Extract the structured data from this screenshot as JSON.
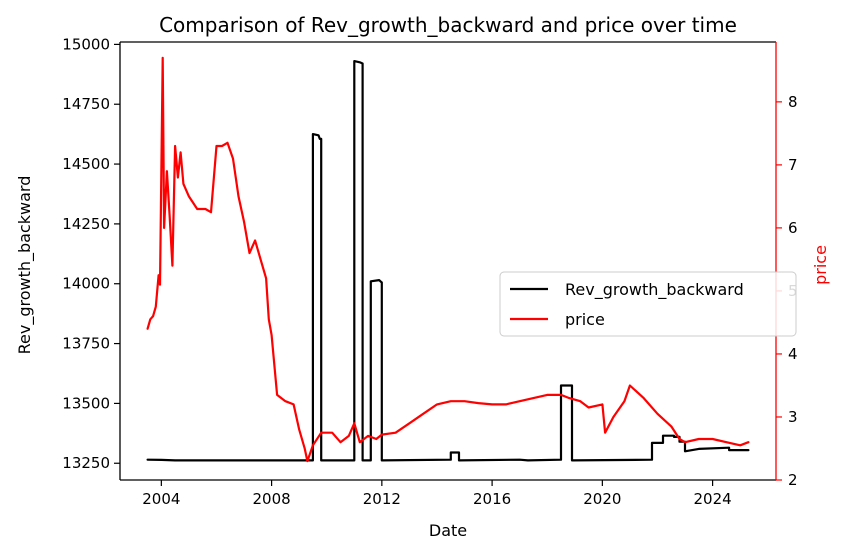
{
  "chart_data": {
    "type": "line",
    "title": "Comparison of Rev_growth_backward and price over time",
    "xlabel": "Date",
    "ylabel": "Rev_growth_backward",
    "ylabel_right": "price",
    "xlim": [
      2002.5,
      2026.3
    ],
    "ylim": [
      13180,
      15010
    ],
    "ylim_right": [
      2.0,
      8.95
    ],
    "x_ticks": [
      2004,
      2008,
      2012,
      2016,
      2020,
      2024
    ],
    "x_tick_labels": [
      "2004",
      "2008",
      "2012",
      "2016",
      "2020",
      "2024"
    ],
    "y_ticks": [
      13250,
      13500,
      13750,
      14000,
      14250,
      14500,
      14750,
      15000
    ],
    "y_tick_labels": [
      "13250",
      "13500",
      "13750",
      "14000",
      "14250",
      "14500",
      "14750",
      "15000"
    ],
    "y_right_ticks": [
      2,
      3,
      4,
      5,
      6,
      7,
      8
    ],
    "y_right_tick_labels": [
      "2",
      "3",
      "4",
      "5",
      "6",
      "7",
      "8"
    ],
    "grid": false,
    "legend_position": "center-right",
    "colors": {
      "Rev_growth_backward": "#000000",
      "price": "#ff0000",
      "right_axis": "#ff0000"
    },
    "series": [
      {
        "name": "Rev_growth_backward",
        "axis": "left",
        "step": true,
        "points": [
          [
            2003.5,
            13265
          ],
          [
            2004.0,
            13264
          ],
          [
            2004.5,
            13262
          ],
          [
            2009.5,
            13262
          ],
          [
            2009.5,
            14625
          ],
          [
            2009.7,
            14620
          ],
          [
            2009.75,
            14605
          ],
          [
            2009.8,
            14605
          ],
          [
            2009.8,
            13262
          ],
          [
            2011.0,
            13262
          ],
          [
            2011.0,
            14930
          ],
          [
            2011.2,
            14925
          ],
          [
            2011.3,
            14920
          ],
          [
            2011.3,
            13262
          ],
          [
            2011.6,
            13262
          ],
          [
            2011.6,
            14010
          ],
          [
            2011.9,
            14015
          ],
          [
            2012.0,
            14005
          ],
          [
            2012.0,
            13262
          ],
          [
            2014.5,
            13265
          ],
          [
            2014.5,
            13295
          ],
          [
            2014.8,
            13295
          ],
          [
            2014.8,
            13262
          ],
          [
            2017.0,
            13265
          ],
          [
            2017.3,
            13262
          ],
          [
            2018.5,
            13265
          ],
          [
            2018.5,
            13575
          ],
          [
            2018.9,
            13575
          ],
          [
            2018.9,
            13262
          ],
          [
            2021.8,
            13265
          ],
          [
            2021.8,
            13335
          ],
          [
            2022.2,
            13335
          ],
          [
            2022.2,
            13365
          ],
          [
            2022.6,
            13365
          ],
          [
            2022.6,
            13360
          ],
          [
            2022.8,
            13360
          ],
          [
            2022.8,
            13340
          ],
          [
            2023.0,
            13340
          ],
          [
            2023.0,
            13300
          ],
          [
            2023.5,
            13310
          ],
          [
            2024.6,
            13315
          ],
          [
            2024.6,
            13305
          ],
          [
            2025.3,
            13305
          ]
        ]
      },
      {
        "name": "price",
        "axis": "right",
        "step": false,
        "points": [
          [
            2003.5,
            4.4
          ],
          [
            2003.6,
            4.55
          ],
          [
            2003.7,
            4.6
          ],
          [
            2003.8,
            4.75
          ],
          [
            2003.9,
            5.25
          ],
          [
            2003.95,
            5.1
          ],
          [
            2004.05,
            8.7
          ],
          [
            2004.1,
            6.0
          ],
          [
            2004.2,
            6.9
          ],
          [
            2004.3,
            6.2
          ],
          [
            2004.4,
            5.4
          ],
          [
            2004.5,
            7.3
          ],
          [
            2004.6,
            6.8
          ],
          [
            2004.7,
            7.2
          ],
          [
            2004.8,
            6.7
          ],
          [
            2005.0,
            6.5
          ],
          [
            2005.3,
            6.3
          ],
          [
            2005.6,
            6.3
          ],
          [
            2005.8,
            6.25
          ],
          [
            2006.0,
            7.3
          ],
          [
            2006.2,
            7.3
          ],
          [
            2006.4,
            7.35
          ],
          [
            2006.6,
            7.1
          ],
          [
            2006.8,
            6.5
          ],
          [
            2007.0,
            6.1
          ],
          [
            2007.2,
            5.6
          ],
          [
            2007.4,
            5.8
          ],
          [
            2007.6,
            5.5
          ],
          [
            2007.8,
            5.2
          ],
          [
            2007.9,
            4.55
          ],
          [
            2008.0,
            4.3
          ],
          [
            2008.2,
            3.35
          ],
          [
            2008.5,
            3.25
          ],
          [
            2008.8,
            3.2
          ],
          [
            2009.0,
            2.8
          ],
          [
            2009.2,
            2.5
          ],
          [
            2009.3,
            2.3
          ],
          [
            2009.5,
            2.55
          ],
          [
            2009.8,
            2.75
          ],
          [
            2010.2,
            2.75
          ],
          [
            2010.5,
            2.6
          ],
          [
            2010.8,
            2.7
          ],
          [
            2011.0,
            2.9
          ],
          [
            2011.2,
            2.6
          ],
          [
            2011.5,
            2.7
          ],
          [
            2011.8,
            2.65
          ],
          [
            2012.0,
            2.72
          ],
          [
            2012.5,
            2.75
          ],
          [
            2013.0,
            2.9
          ],
          [
            2013.5,
            3.05
          ],
          [
            2014.0,
            3.2
          ],
          [
            2014.5,
            3.25
          ],
          [
            2015.0,
            3.25
          ],
          [
            2015.5,
            3.22
          ],
          [
            2016.0,
            3.2
          ],
          [
            2016.5,
            3.2
          ],
          [
            2017.0,
            3.25
          ],
          [
            2017.5,
            3.3
          ],
          [
            2018.0,
            3.35
          ],
          [
            2018.5,
            3.35
          ],
          [
            2018.8,
            3.3
          ],
          [
            2019.2,
            3.25
          ],
          [
            2019.5,
            3.15
          ],
          [
            2020.0,
            3.2
          ],
          [
            2020.1,
            2.75
          ],
          [
            2020.4,
            3.0
          ],
          [
            2020.8,
            3.25
          ],
          [
            2021.0,
            3.5
          ],
          [
            2021.5,
            3.3
          ],
          [
            2022.0,
            3.05
          ],
          [
            2022.5,
            2.85
          ],
          [
            2022.8,
            2.65
          ],
          [
            2023.0,
            2.6
          ],
          [
            2023.5,
            2.65
          ],
          [
            2024.0,
            2.65
          ],
          [
            2024.5,
            2.6
          ],
          [
            2025.0,
            2.55
          ],
          [
            2025.3,
            2.6
          ]
        ]
      }
    ]
  }
}
